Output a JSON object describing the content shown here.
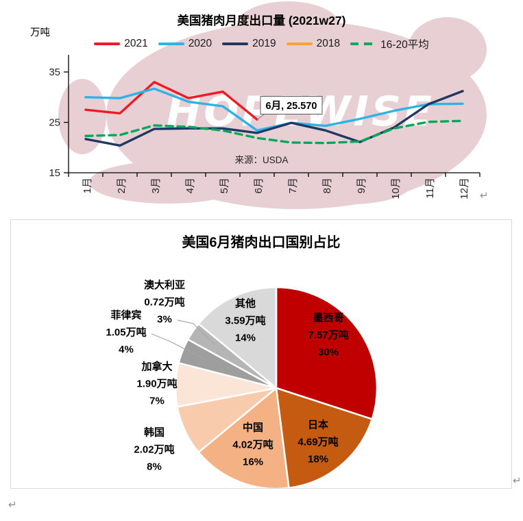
{
  "watermark": {
    "text": "HOPEWISE"
  },
  "paragraph_mark": "↵",
  "chart_data": [
    {
      "type": "line",
      "title": "美国猪肉月度出口量 (2021w27)",
      "unit_label": "万吨",
      "source": "来源：USDA",
      "x_categories": [
        "1月",
        "2月",
        "3月",
        "4月",
        "5月",
        "6月",
        "7月",
        "8月",
        "9月",
        "10月",
        "11月",
        "12月"
      ],
      "ylim": [
        15,
        38
      ],
      "y_ticks": [
        35,
        25,
        15
      ],
      "grid": false,
      "legend_position": "top",
      "annotation": {
        "label": "6月, 25.570",
        "series": "2021",
        "month_index": 5,
        "value": 25.57
      },
      "series": [
        {
          "name": "2021",
          "color": "#ED1C24",
          "dashed": false,
          "values": [
            27.5,
            26.8,
            33.0,
            29.8,
            31.1,
            25.57
          ]
        },
        {
          "name": "2020",
          "color": "#2EB3E6",
          "dashed": false,
          "values": [
            30.0,
            29.8,
            31.7,
            29.1,
            28.2,
            23.4,
            24.9,
            24.3,
            25.7,
            27.3,
            28.6,
            28.7
          ]
        },
        {
          "name": "2019",
          "color": "#1F3864",
          "dashed": false,
          "values": [
            21.7,
            20.4,
            23.7,
            23.8,
            23.8,
            22.9,
            24.9,
            23.4,
            21.1,
            24.0,
            28.6,
            31.2
          ]
        },
        {
          "name": "2018",
          "color": "#FFA12C",
          "dashed": false,
          "values": []
        },
        {
          "name": "16-20平均",
          "color": "#00A859",
          "dashed": true,
          "values": [
            22.3,
            22.5,
            24.4,
            24.1,
            23.4,
            21.9,
            21.0,
            20.9,
            21.2,
            23.8,
            25.1,
            25.3
          ]
        }
      ]
    },
    {
      "type": "pie",
      "title": "美国6月猪肉出口国别占比",
      "slices": [
        {
          "name": "墨西哥",
          "amount": "7.57万吨",
          "pct": 30,
          "pct_label": "30%",
          "color": "#C00000"
        },
        {
          "name": "日本",
          "amount": "4.69万吨",
          "pct": 18,
          "pct_label": "18%",
          "color": "#C55A11"
        },
        {
          "name": "中国",
          "amount": "4.02万吨",
          "pct": 16,
          "pct_label": "16%",
          "color": "#F4B183"
        },
        {
          "name": "韩国",
          "amount": "2.02万吨",
          "pct": 8,
          "pct_label": "8%",
          "color": "#F8CBAD"
        },
        {
          "name": "加拿大",
          "amount": "1.90万吨",
          "pct": 7,
          "pct_label": "7%",
          "color": "#FBE5D6"
        },
        {
          "name": "菲律宾",
          "amount": "1.05万吨",
          "pct": 4,
          "pct_label": "4%",
          "color": "#9E9E9E"
        },
        {
          "name": "澳大利亚",
          "amount": "0.72万吨",
          "pct": 3,
          "pct_label": "3%",
          "color": "#B5B5B5"
        },
        {
          "name": "其他",
          "amount": "3.59万吨",
          "pct": 14,
          "pct_label": "14%",
          "color": "#D9D9D9"
        }
      ]
    }
  ]
}
